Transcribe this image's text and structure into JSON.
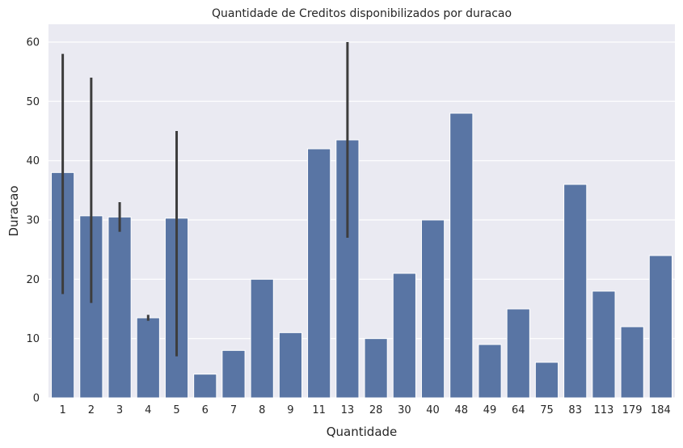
{
  "chart_data": {
    "type": "bar",
    "title": "Quantidade de Creditos disponibilizados por duracao",
    "xlabel": "Quantidade",
    "ylabel": "Duracao",
    "categories": [
      "1",
      "2",
      "3",
      "4",
      "5",
      "6",
      "7",
      "8",
      "9",
      "11",
      "13",
      "28",
      "30",
      "40",
      "48",
      "49",
      "64",
      "75",
      "83",
      "113",
      "179",
      "184"
    ],
    "values": [
      38,
      30.7,
      30.5,
      13.5,
      30.3,
      4,
      8,
      20,
      11,
      42,
      43.5,
      10,
      21,
      30,
      48,
      9,
      15,
      6,
      36,
      18,
      12,
      24
    ],
    "error_bars": [
      [
        17.5,
        58
      ],
      [
        16,
        54
      ],
      [
        28,
        33
      ],
      [
        13,
        14
      ],
      [
        7,
        45
      ],
      null,
      null,
      null,
      null,
      null,
      [
        27,
        60
      ],
      null,
      null,
      null,
      null,
      null,
      null,
      null,
      null,
      null,
      null,
      null
    ],
    "ylim": [
      0,
      63
    ],
    "yticks": [
      0,
      10,
      20,
      30,
      40,
      50,
      60
    ],
    "grid": true,
    "bar_color": "#5975a4",
    "errbar_color": "#3d3d3d",
    "background_color": "#eaeaf2"
  }
}
